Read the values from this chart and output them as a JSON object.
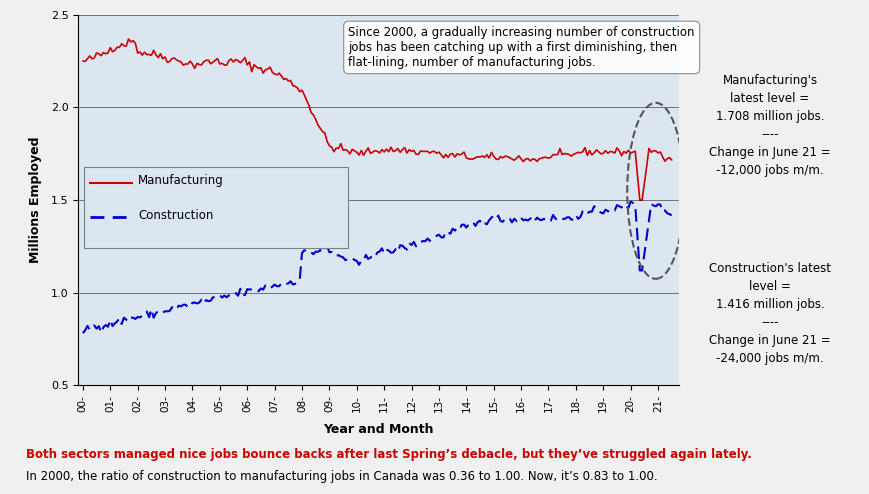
{
  "title": "",
  "xlabel": "Year and Month",
  "ylabel": "Millions Employed",
  "ylim": [
    0.5,
    2.5
  ],
  "yticks": [
    0.5,
    1.0,
    1.5,
    2.0,
    2.5
  ],
  "x_labels": [
    "00-",
    "01-",
    "02-",
    "03-",
    "04-",
    "05-",
    "06-",
    "07-",
    "08-",
    "09-",
    "10-",
    "11-",
    "12-",
    "13-",
    "14-",
    "15-",
    "16-",
    "17-",
    "18-",
    "19-",
    "20-",
    "21-"
  ],
  "annotation_text": "Since 2000, a gradually increasing number of construction\njobs has been catching up with a first diminishing, then\nflat-lining, number of manufacturing jobs.",
  "footnote_bold": "Both sectors managed nice jobs bounce backs after last Spring’s debacle, but they’ve struggled again lately.",
  "footnote_normal": "In 2000, the ratio of construction to manufacturing jobs in Canada was 0.36 to 1.00. Now, it’s 0.83 to 1.00.",
  "mfg_label": "Manufacturing",
  "con_label": "Construction",
  "mfg_box_text": "Manufacturing's\nlatest level =\n1.708 million jobs.\n----\nChange in June 21 =\n-12,000 jobs m/m.",
  "con_box_text": "Construction's latest\nlevel =\n1.416 million jobs.\n----\nChange in June 21 =\n-24,000 jobs m/m.",
  "mfg_color": "#cc0000",
  "con_color": "#0000cc",
  "bg_plot": "#dce6f1",
  "bg_box": "#dce6f1",
  "bg_footnote": "#f2dcdb",
  "grid_color": "#000000",
  "n_points": 259
}
